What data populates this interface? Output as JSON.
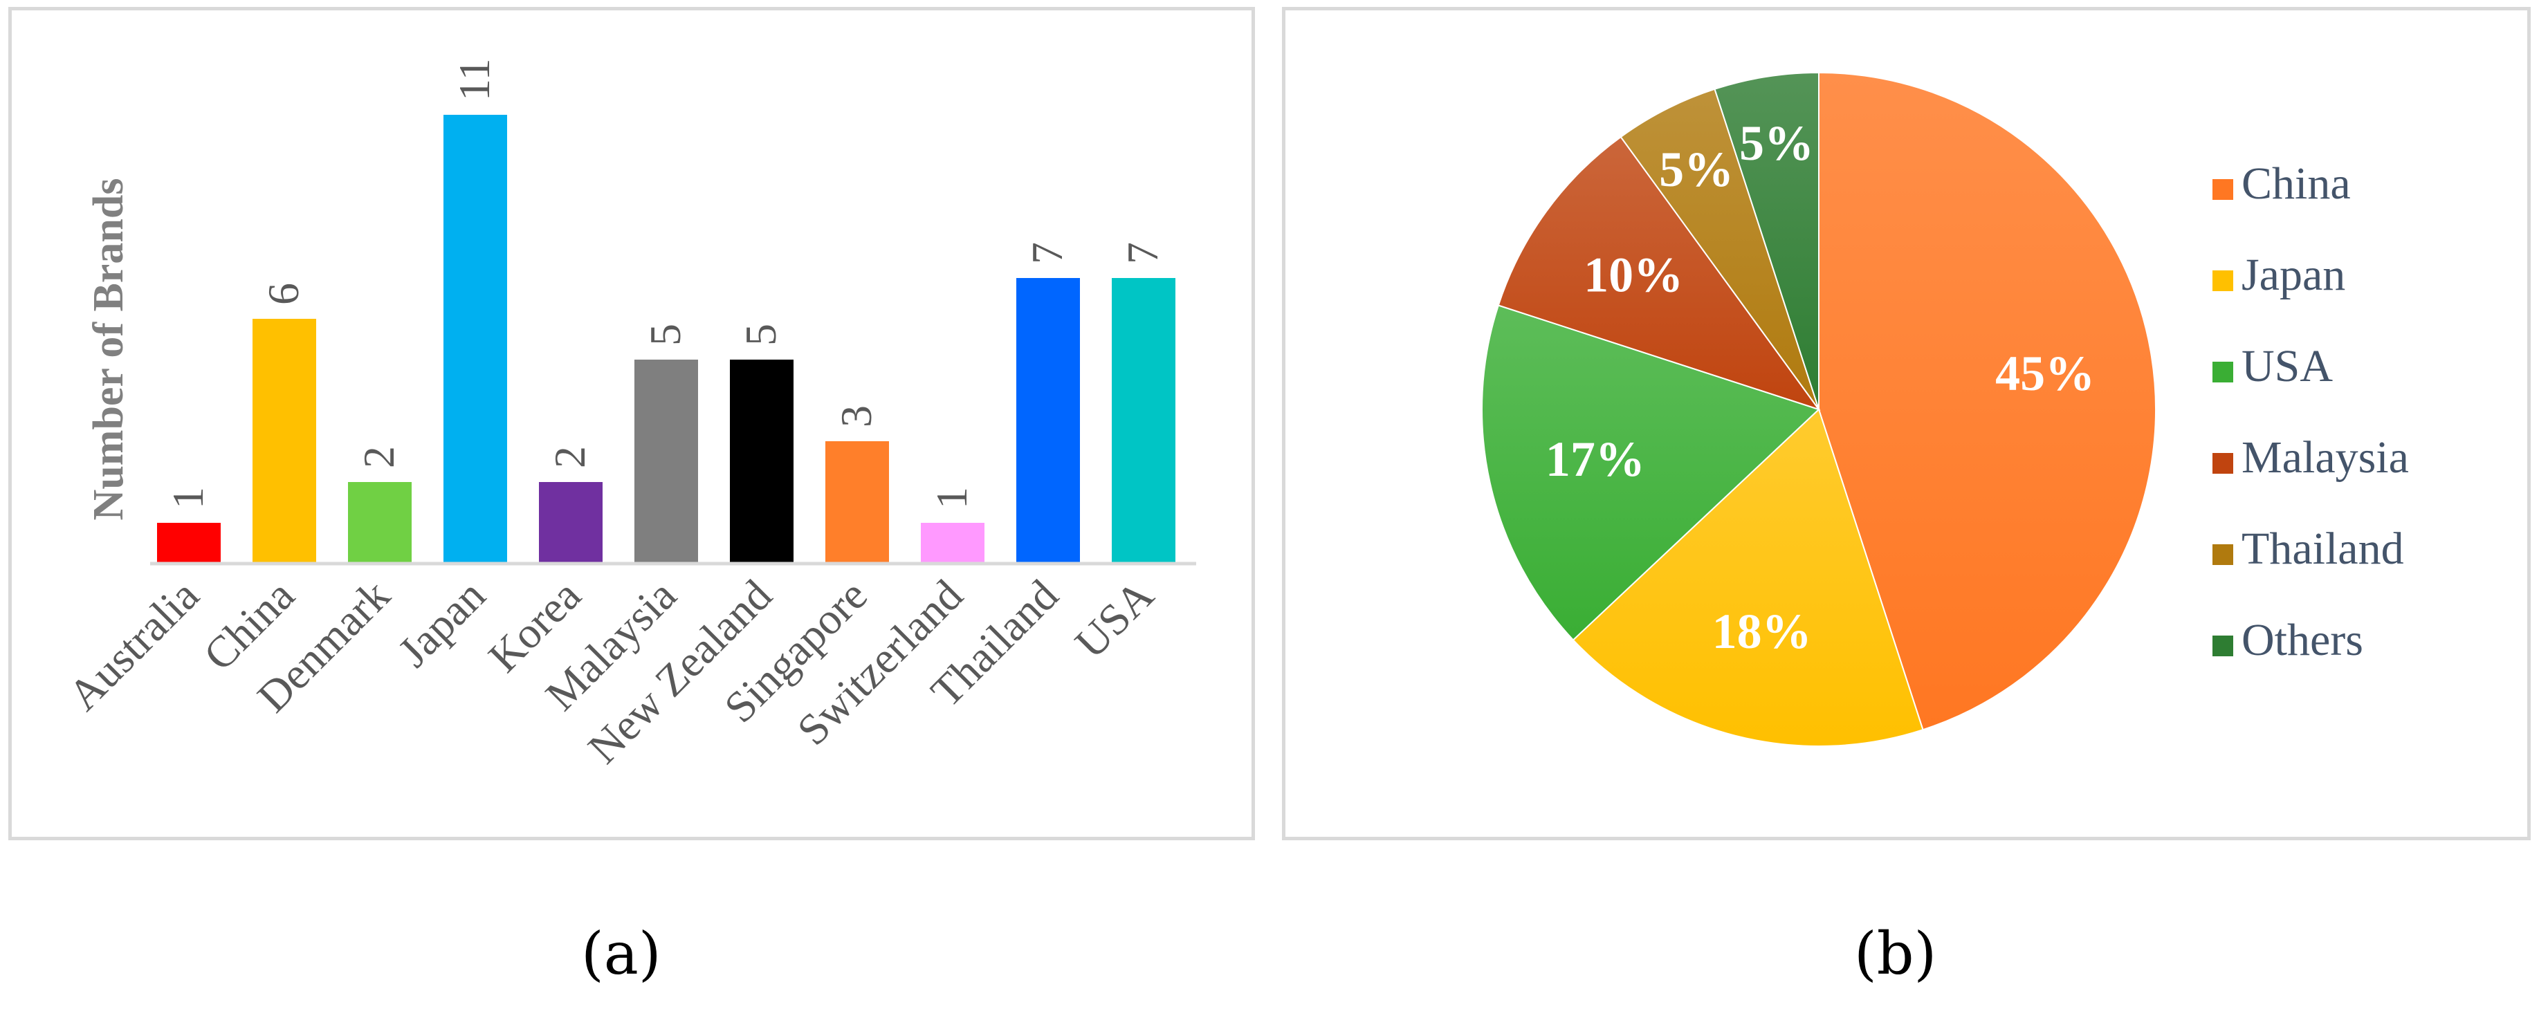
{
  "captions": {
    "a": "(a)",
    "b": "(b)"
  },
  "chart_data": [
    {
      "type": "bar",
      "ylabel": "Number of Brands",
      "categories": [
        "Australia",
        "China",
        "Denmark",
        "Japan",
        "Korea",
        "Malaysia",
        "New Zealand",
        "Singapore",
        "Switzerland",
        "Thailand",
        "USA"
      ],
      "values": [
        1,
        6,
        2,
        11,
        2,
        5,
        5,
        3,
        1,
        7,
        7
      ],
      "colors": [
        "#ff0000",
        "#ffc000",
        "#70d044",
        "#00b0f0",
        "#7030a0",
        "#7f7f7f",
        "#000000",
        "#ff7f2a",
        "#ff99ff",
        "#0066ff",
        "#00c5c5"
      ],
      "data_labels": [
        "1",
        "6",
        "2",
        "11",
        "2",
        "5",
        "5",
        "3",
        "1",
        "7",
        "7"
      ],
      "grid": false
    },
    {
      "type": "pie",
      "categories": [
        "China",
        "Japan",
        "USA",
        "Malaysia",
        "Thailand",
        "Others"
      ],
      "values": [
        45,
        18,
        17,
        10,
        5,
        5
      ],
      "data_labels": [
        "45%",
        "18%",
        "17%",
        "10%",
        "5%",
        "5%"
      ],
      "colors": [
        "#ff7722",
        "#ffc000",
        "#3aae34",
        "#c0440f",
        "#b07a0e",
        "#2e7d32"
      ],
      "legend_position": "right"
    }
  ]
}
